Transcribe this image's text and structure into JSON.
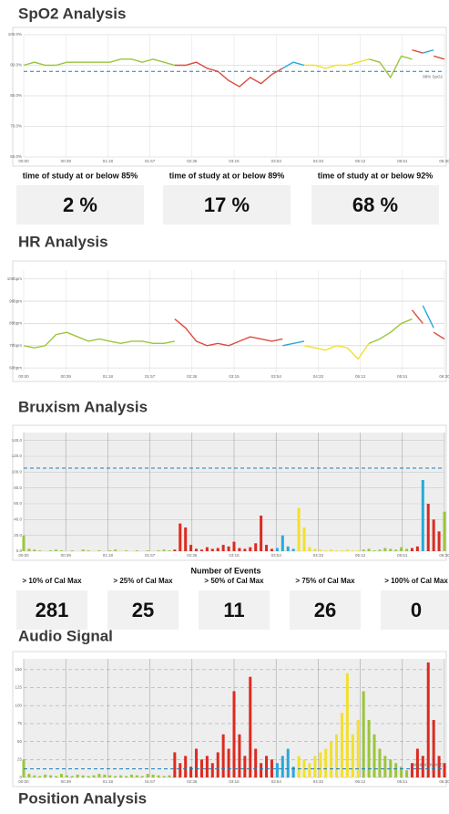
{
  "titles": {
    "spo2": "SpO2 Analysis",
    "hr": "HR Analysis",
    "bruxism": "Bruxism Analysis",
    "audio": "Audio Signal",
    "position": "Position Analysis"
  },
  "spo2_stats": [
    {
      "label": "time of study at or below 85%",
      "value": "2 %"
    },
    {
      "label": "time of study at or below 89%",
      "value": "17 %"
    },
    {
      "label": "time of study at or below 92%",
      "value": "68 %"
    }
  ],
  "events": {
    "title": "Number of Events",
    "items": [
      {
        "label": "> 10% of Cal Max",
        "value": 281
      },
      {
        "label": "> 25% of Cal Max",
        "value": 25
      },
      {
        "label": "> 50% of Cal Max",
        "value": 11
      },
      {
        "label": "> 75% of Cal Max",
        "value": 26
      },
      {
        "label": "> 100% of Cal Max",
        "value": 0
      }
    ]
  },
  "chart_data": [
    {
      "type": "line",
      "xlim": [
        0,
        390
      ],
      "ylim": [
        60,
        100
      ],
      "yticks": [
        {
          "value": 100,
          "label": "100.0%"
        },
        {
          "value": 90,
          "label": "90.0%"
        },
        {
          "value": 80,
          "label": "80.0%"
        },
        {
          "value": 70,
          "label": "70.0%"
        },
        {
          "value": 60,
          "label": "60.0%"
        }
      ],
      "xticks": [
        {
          "value": 0,
          "label": "00:00"
        },
        {
          "value": 39,
          "label": "00:39"
        },
        {
          "value": 78,
          "label": "01:18"
        },
        {
          "value": 117,
          "label": "01:57"
        },
        {
          "value": 156,
          "label": "02:36"
        },
        {
          "value": 195,
          "label": "03:15"
        },
        {
          "value": 234,
          "label": "03:54"
        },
        {
          "value": 273,
          "label": "04:33"
        },
        {
          "value": 312,
          "label": "05:12"
        },
        {
          "value": 351,
          "label": "05:51"
        },
        {
          "value": 390,
          "label": "06:30"
        }
      ],
      "threshold": {
        "value": 88,
        "label": "88% SpO2"
      },
      "series": [
        {
          "color": "#9bc53d",
          "x": [
            0,
            10,
            20,
            30,
            40,
            50,
            60,
            70,
            80,
            90,
            100,
            110,
            120,
            130,
            140
          ],
          "values": [
            90,
            91,
            90,
            90,
            91,
            91,
            91,
            91,
            91,
            92,
            92,
            91,
            92,
            91,
            90
          ]
        },
        {
          "color": "#dd4b3e",
          "x": [
            140,
            150,
            160,
            170,
            180,
            190,
            200,
            210,
            220,
            230,
            240
          ],
          "values": [
            90,
            90,
            91,
            89,
            88,
            85,
            83,
            86,
            84,
            87,
            89
          ]
        },
        {
          "color": "#29a8d8",
          "x": [
            240,
            250,
            260
          ],
          "values": [
            89,
            91,
            90
          ]
        },
        {
          "color": "#f2e02f",
          "x": [
            260,
            270,
            280,
            290,
            300,
            310,
            320
          ],
          "values": [
            90,
            90,
            89,
            90,
            90,
            91,
            92
          ]
        },
        {
          "color": "#9bc53d",
          "x": [
            320,
            330,
            340,
            350,
            360
          ],
          "values": [
            92,
            91,
            86,
            93,
            92
          ]
        },
        {
          "color": "#dd4b3e",
          "x": [
            360,
            370
          ],
          "values": [
            95,
            94
          ]
        },
        {
          "color": "#29a8d8",
          "x": [
            370,
            380
          ],
          "values": [
            94,
            95
          ]
        },
        {
          "color": "#dd4b3e",
          "x": [
            380,
            390
          ],
          "values": [
            93,
            92
          ]
        }
      ]
    },
    {
      "type": "line",
      "xlim": [
        0,
        390
      ],
      "ylim": [
        58,
        104
      ],
      "yticks": [
        {
          "value": 100,
          "label": "100bpm"
        },
        {
          "value": 90,
          "label": "90bpm"
        },
        {
          "value": 80,
          "label": "80bpm"
        },
        {
          "value": 70,
          "label": "70bpm"
        },
        {
          "value": 60,
          "label": "60bpm"
        }
      ],
      "xticks": [
        {
          "value": 0,
          "label": "00:00"
        },
        {
          "value": 39,
          "label": "00:39"
        },
        {
          "value": 78,
          "label": "01:18"
        },
        {
          "value": 117,
          "label": "01:57"
        },
        {
          "value": 156,
          "label": "02:36"
        },
        {
          "value": 195,
          "label": "03:15"
        },
        {
          "value": 234,
          "label": "03:54"
        },
        {
          "value": 273,
          "label": "04:33"
        },
        {
          "value": 312,
          "label": "05:12"
        },
        {
          "value": 351,
          "label": "05:51"
        },
        {
          "value": 390,
          "label": "06:30"
        }
      ],
      "series": [
        {
          "color": "#9bc53d",
          "x": [
            0,
            10,
            20,
            30,
            40,
            50,
            60,
            70,
            80,
            90,
            100,
            110,
            120,
            130,
            140
          ],
          "values": [
            70,
            69,
            70,
            75,
            76,
            74,
            72,
            73,
            72,
            71,
            72,
            72,
            71,
            71,
            72
          ]
        },
        {
          "color": "#dd4b3e",
          "x": [
            140,
            150,
            160,
            170,
            180,
            190,
            200,
            210,
            220,
            230,
            240
          ],
          "values": [
            82,
            78,
            72,
            70,
            71,
            70,
            72,
            74,
            73,
            72,
            73
          ]
        },
        {
          "color": "#29a8d8",
          "x": [
            240,
            250,
            260
          ],
          "values": [
            70,
            71,
            72
          ]
        },
        {
          "color": "#f2e02f",
          "x": [
            260,
            270,
            280,
            290,
            300,
            310,
            320
          ],
          "values": [
            70,
            69,
            68,
            70,
            69,
            64,
            71
          ]
        },
        {
          "color": "#9bc53d",
          "x": [
            320,
            330,
            340,
            350,
            360
          ],
          "values": [
            71,
            73,
            76,
            80,
            82
          ]
        },
        {
          "color": "#dd4b3e",
          "x": [
            360,
            370
          ],
          "values": [
            86,
            80
          ]
        },
        {
          "color": "#29a8d8",
          "x": [
            370,
            380
          ],
          "values": [
            88,
            78
          ]
        },
        {
          "color": "#dd4b3e",
          "x": [
            380,
            390
          ],
          "values": [
            76,
            73
          ]
        }
      ]
    },
    {
      "type": "bar",
      "xlim": [
        0,
        390
      ],
      "ylim": [
        0,
        150
      ],
      "background": "#eeeeee",
      "yticks": [
        {
          "value": 0,
          "label": "0.0"
        },
        {
          "value": 20,
          "label": "20.0"
        },
        {
          "value": 40,
          "label": "40.0"
        },
        {
          "value": 60,
          "label": "60.0"
        },
        {
          "value": 80,
          "label": "80.0"
        },
        {
          "value": 100,
          "label": "100.0"
        },
        {
          "value": 120,
          "label": "120.0"
        },
        {
          "value": 140,
          "label": "140.0"
        }
      ],
      "xticks": [
        {
          "value": 0,
          "label": "00:00"
        },
        {
          "value": 39,
          "label": "00:39"
        },
        {
          "value": 78,
          "label": "01:18"
        },
        {
          "value": 117,
          "label": "01:57"
        },
        {
          "value": 156,
          "label": "02:36"
        },
        {
          "value": 195,
          "label": "03:15"
        },
        {
          "value": 234,
          "label": "03:54"
        },
        {
          "value": 273,
          "label": "04:33"
        },
        {
          "value": 312,
          "label": "05:12"
        },
        {
          "value": 351,
          "label": "05:51"
        },
        {
          "value": 390,
          "label": "06:30"
        }
      ],
      "threshold": {
        "value": 105
      },
      "series": [
        {
          "color": "#9bc53d",
          "x": [
            0,
            5,
            10,
            15,
            20,
            25,
            30,
            35,
            40,
            45,
            50,
            55,
            60,
            65,
            70,
            75,
            80,
            85,
            90,
            95,
            100,
            105,
            110,
            115,
            120,
            125,
            130,
            135
          ],
          "values": [
            20,
            3,
            2,
            1,
            0,
            1,
            2,
            1,
            0,
            1,
            0,
            2,
            1,
            0,
            1,
            0,
            1,
            2,
            0,
            1,
            0,
            1,
            0,
            1,
            0,
            1,
            2,
            1
          ]
        },
        {
          "color": "#dd2a20",
          "x": [
            140,
            145,
            150,
            155,
            160,
            165,
            170,
            175,
            180,
            185,
            190,
            195,
            200,
            205,
            210,
            215,
            220,
            225,
            230
          ],
          "values": [
            2,
            35,
            30,
            8,
            3,
            2,
            5,
            3,
            4,
            8,
            6,
            12,
            4,
            3,
            5,
            10,
            45,
            8,
            3
          ]
        },
        {
          "color": "#29a8d8",
          "x": [
            235,
            240,
            245,
            250
          ],
          "values": [
            4,
            20,
            6,
            3
          ]
        },
        {
          "color": "#f2e02f",
          "x": [
            255,
            260,
            265,
            270,
            275,
            280,
            285,
            290,
            295,
            300,
            305,
            310
          ],
          "values": [
            55,
            30,
            5,
            3,
            2,
            1,
            2,
            1,
            1,
            2,
            1,
            1
          ]
        },
        {
          "color": "#9bc53d",
          "x": [
            315,
            320,
            325,
            330,
            335,
            340,
            345,
            350,
            355
          ],
          "values": [
            2,
            3,
            1,
            2,
            4,
            3,
            2,
            5,
            3
          ]
        },
        {
          "color": "#dd2a20",
          "x": [
            360,
            365
          ],
          "values": [
            4,
            6
          ]
        },
        {
          "color": "#29a8d8",
          "x": [
            370
          ],
          "values": [
            90
          ]
        },
        {
          "color": "#dd2a20",
          "x": [
            375,
            380,
            385
          ],
          "values": [
            60,
            40,
            25
          ]
        },
        {
          "color": "#9bc53d",
          "x": [
            390
          ],
          "values": [
            50
          ]
        }
      ]
    },
    {
      "type": "bar",
      "xlim": [
        0,
        390
      ],
      "ylim": [
        0,
        165
      ],
      "background": "#eeeeee",
      "dashed_grid": true,
      "yticks": [
        0,
        25,
        50,
        75,
        100,
        125,
        150
      ],
      "xticks": [
        {
          "value": 0,
          "label": "00:00"
        },
        {
          "value": 39,
          "label": "00:39"
        },
        {
          "value": 78,
          "label": "01:18"
        },
        {
          "value": 117,
          "label": "01:57"
        },
        {
          "value": 156,
          "label": "02:36"
        },
        {
          "value": 195,
          "label": "03:15"
        },
        {
          "value": 234,
          "label": "03:54"
        },
        {
          "value": 273,
          "label": "04:33"
        },
        {
          "value": 312,
          "label": "05:12"
        },
        {
          "value": 351,
          "label": "05:51"
        },
        {
          "value": 390,
          "label": "06:30"
        }
      ],
      "threshold": {
        "value": 12,
        "label": "AMBIENT NOISE"
      },
      "series": [
        {
          "color": "#9bc53d",
          "x": [
            0,
            5,
            10,
            15,
            20,
            25,
            30,
            35,
            40,
            45,
            50,
            55,
            60,
            65,
            70,
            75,
            80,
            85,
            90,
            95,
            100,
            105,
            110,
            115,
            120,
            125,
            130,
            135
          ],
          "values": [
            25,
            5,
            3,
            2,
            4,
            3,
            2,
            5,
            3,
            2,
            4,
            3,
            2,
            3,
            5,
            4,
            3,
            2,
            3,
            2,
            4,
            3,
            2,
            5,
            4,
            3,
            2,
            3
          ]
        },
        {
          "color": "#dd2a20",
          "x": [
            140,
            145,
            150,
            155,
            160,
            165,
            170,
            175,
            180,
            185,
            190,
            195,
            200,
            205,
            210,
            215,
            220,
            225,
            230
          ],
          "values": [
            35,
            20,
            30,
            15,
            40,
            25,
            30,
            20,
            35,
            60,
            40,
            120,
            60,
            30,
            140,
            40,
            20,
            30,
            25
          ]
        },
        {
          "color": "#29a8d8",
          "x": [
            235,
            240,
            245,
            250
          ],
          "values": [
            20,
            30,
            40,
            15
          ]
        },
        {
          "color": "#f2e02f",
          "x": [
            255,
            260,
            265,
            270,
            275,
            280,
            285,
            290,
            295,
            300,
            305,
            310
          ],
          "values": [
            30,
            25,
            20,
            30,
            35,
            40,
            50,
            60,
            90,
            145,
            60,
            80
          ]
        },
        {
          "color": "#9bc53d",
          "x": [
            315,
            320,
            325,
            330,
            335,
            340,
            345,
            350,
            355
          ],
          "values": [
            120,
            80,
            60,
            40,
            30,
            25,
            20,
            15,
            10
          ]
        },
        {
          "color": "#dd2a20",
          "x": [
            360,
            365,
            370,
            375,
            380,
            385,
            390
          ],
          "values": [
            20,
            40,
            30,
            160,
            80,
            30,
            20
          ]
        }
      ]
    }
  ]
}
